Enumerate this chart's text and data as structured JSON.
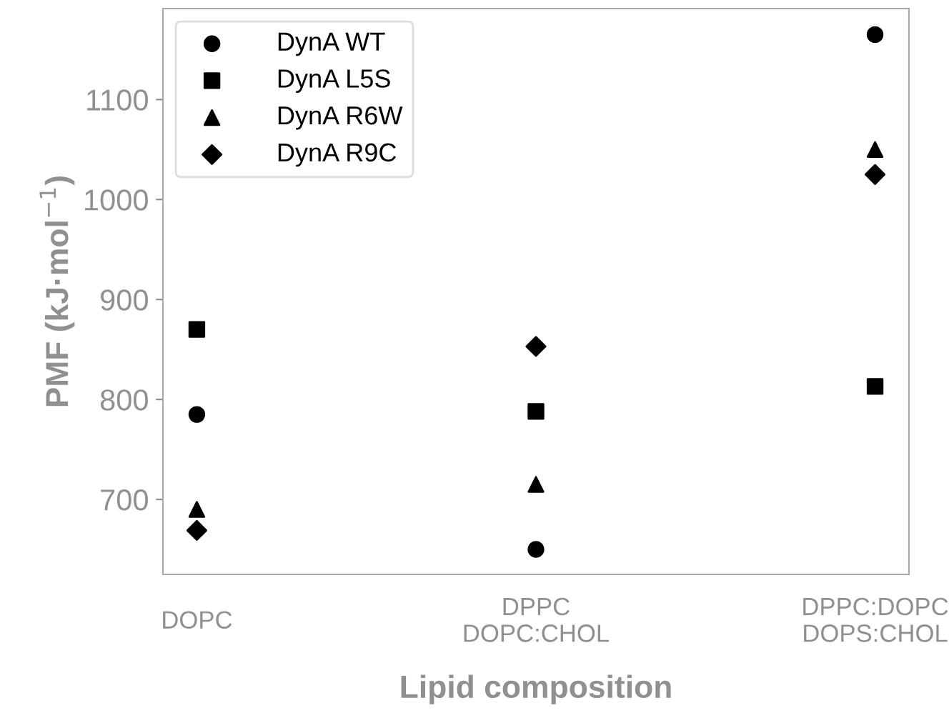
{
  "chart_data": {
    "type": "scatter",
    "xlabel": "Lipid composition",
    "ylabel": "PMF (kJ·mol$^{−1}$)",
    "categories": [
      "DOPC",
      "DPPC\nDOPC:CHOL",
      "DPPC:DOPC\nDOPS:CHOL"
    ],
    "series": [
      {
        "name": "DynA WT",
        "color": "#000000",
        "marker": "circle",
        "values": [
          785,
          650,
          1165
        ]
      },
      {
        "name": "DynA L5S",
        "color": "#000000",
        "marker": "square",
        "values": [
          870,
          788,
          813
        ]
      },
      {
        "name": "DynA R6W",
        "color": "#000000",
        "marker": "triangle",
        "values": [
          690,
          715,
          1050
        ]
      },
      {
        "name": "DynA R9C",
        "color": "#000000",
        "marker": "diamond",
        "values": [
          669,
          853,
          1025
        ]
      }
    ],
    "ylim": [
      625,
      1191
    ],
    "yticks": [
      700,
      800,
      900,
      1000,
      1100
    ],
    "grid": false,
    "legend": "top left"
  }
}
